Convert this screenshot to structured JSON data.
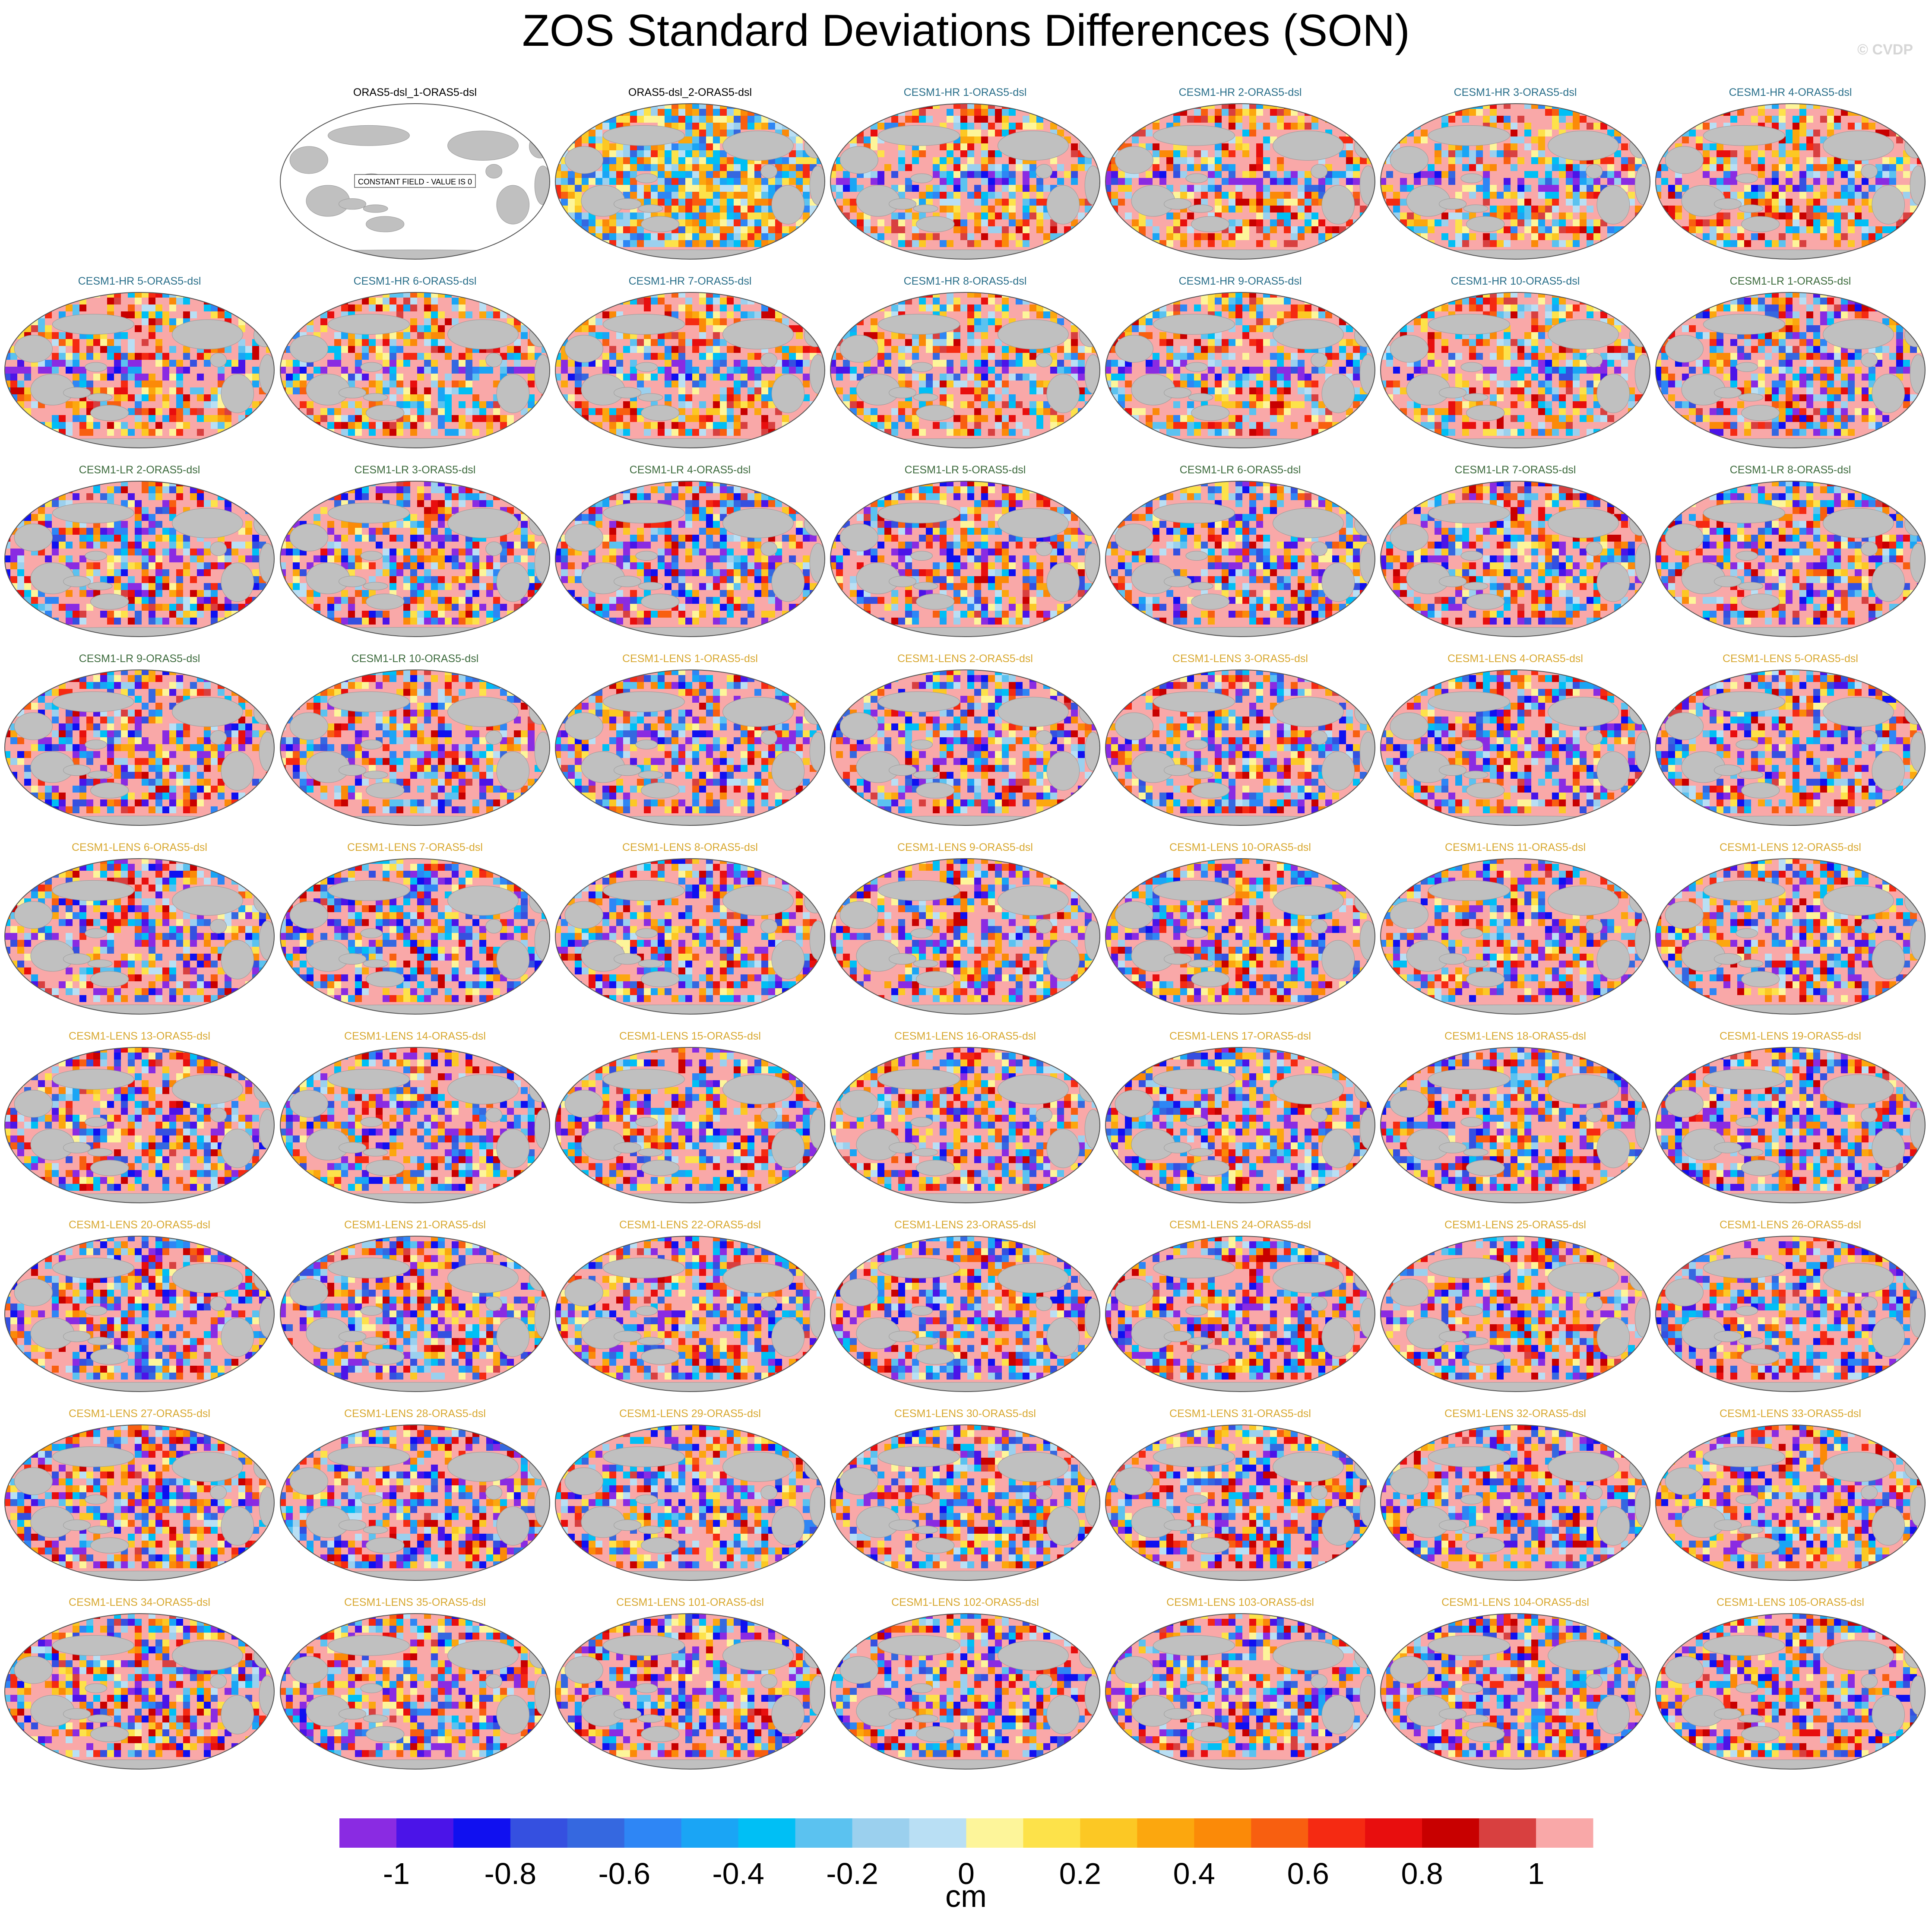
{
  "figure": {
    "title": "ZOS Standard Deviations Differences (SON)",
    "credit": "© CVDP",
    "colorbar_units": "cm",
    "constant_field_label": "CONSTANT FIELD - VALUE IS 0"
  },
  "chart_data": {
    "type": "heatmap",
    "title": "ZOS Standard Deviations Differences (SON)",
    "units": "cm",
    "colorbar": {
      "tick_labels": [
        "-1",
        "-0.8",
        "-0.6",
        "-0.4",
        "-0.2",
        "0",
        "0.2",
        "0.4",
        "0.6",
        "0.8",
        "1"
      ],
      "tick_values": [
        -1,
        -0.8,
        -0.6,
        -0.4,
        -0.2,
        0,
        0.2,
        0.4,
        0.6,
        0.8,
        1
      ],
      "colors": [
        "#8a2be2",
        "#4b14e8",
        "#1010f0",
        "#3550e0",
        "#3568e0",
        "#2e86f5",
        "#1aa5f5",
        "#00bff5",
        "#5bc2f0",
        "#9bd0ee",
        "#b9dff4",
        "#fdf59a",
        "#fde24a",
        "#fcc824",
        "#fca70e",
        "#fb8a08",
        "#f85f10",
        "#f52a12",
        "#e80e0e",
        "#c80000",
        "#d84040",
        "#f9a8a8"
      ]
    },
    "land_color": "#c0c0c0",
    "panels": [
      {
        "label": "ORAS5-dsl_1-ORAS5-dsl",
        "group": "obs",
        "constant": true
      },
      {
        "label": "ORAS5-dsl_2-ORAS5-dsl",
        "group": "obs"
      },
      {
        "label": "CESM1-HR 1-ORAS5-dsl",
        "group": "hr"
      },
      {
        "label": "CESM1-HR 2-ORAS5-dsl",
        "group": "hr"
      },
      {
        "label": "CESM1-HR 3-ORAS5-dsl",
        "group": "hr"
      },
      {
        "label": "CESM1-HR 4-ORAS5-dsl",
        "group": "hr"
      },
      {
        "label": "CESM1-HR 5-ORAS5-dsl",
        "group": "hr"
      },
      {
        "label": "CESM1-HR 6-ORAS5-dsl",
        "group": "hr"
      },
      {
        "label": "CESM1-HR 7-ORAS5-dsl",
        "group": "hr"
      },
      {
        "label": "CESM1-HR 8-ORAS5-dsl",
        "group": "hr"
      },
      {
        "label": "CESM1-HR 9-ORAS5-dsl",
        "group": "hr"
      },
      {
        "label": "CESM1-HR 10-ORAS5-dsl",
        "group": "hr"
      },
      {
        "label": "CESM1-LR 1-ORAS5-dsl",
        "group": "lr"
      },
      {
        "label": "CESM1-LR 2-ORAS5-dsl",
        "group": "lr"
      },
      {
        "label": "CESM1-LR 3-ORAS5-dsl",
        "group": "lr"
      },
      {
        "label": "CESM1-LR 4-ORAS5-dsl",
        "group": "lr"
      },
      {
        "label": "CESM1-LR 5-ORAS5-dsl",
        "group": "lr"
      },
      {
        "label": "CESM1-LR 6-ORAS5-dsl",
        "group": "lr"
      },
      {
        "label": "CESM1-LR 7-ORAS5-dsl",
        "group": "lr"
      },
      {
        "label": "CESM1-LR 8-ORAS5-dsl",
        "group": "lr"
      },
      {
        "label": "CESM1-LR 9-ORAS5-dsl",
        "group": "lr"
      },
      {
        "label": "CESM1-LR 10-ORAS5-dsl",
        "group": "lr"
      },
      {
        "label": "CESM1-LENS 1-ORAS5-dsl",
        "group": "lens"
      },
      {
        "label": "CESM1-LENS 2-ORAS5-dsl",
        "group": "lens"
      },
      {
        "label": "CESM1-LENS 3-ORAS5-dsl",
        "group": "lens"
      },
      {
        "label": "CESM1-LENS 4-ORAS5-dsl",
        "group": "lens"
      },
      {
        "label": "CESM1-LENS 5-ORAS5-dsl",
        "group": "lens"
      },
      {
        "label": "CESM1-LENS 6-ORAS5-dsl",
        "group": "lens"
      },
      {
        "label": "CESM1-LENS 7-ORAS5-dsl",
        "group": "lens"
      },
      {
        "label": "CESM1-LENS 8-ORAS5-dsl",
        "group": "lens"
      },
      {
        "label": "CESM1-LENS 9-ORAS5-dsl",
        "group": "lens"
      },
      {
        "label": "CESM1-LENS 10-ORAS5-dsl",
        "group": "lens"
      },
      {
        "label": "CESM1-LENS 11-ORAS5-dsl",
        "group": "lens"
      },
      {
        "label": "CESM1-LENS 12-ORAS5-dsl",
        "group": "lens"
      },
      {
        "label": "CESM1-LENS 13-ORAS5-dsl",
        "group": "lens"
      },
      {
        "label": "CESM1-LENS 14-ORAS5-dsl",
        "group": "lens"
      },
      {
        "label": "CESM1-LENS 15-ORAS5-dsl",
        "group": "lens"
      },
      {
        "label": "CESM1-LENS 16-ORAS5-dsl",
        "group": "lens"
      },
      {
        "label": "CESM1-LENS 17-ORAS5-dsl",
        "group": "lens"
      },
      {
        "label": "CESM1-LENS 18-ORAS5-dsl",
        "group": "lens"
      },
      {
        "label": "CESM1-LENS 19-ORAS5-dsl",
        "group": "lens"
      },
      {
        "label": "CESM1-LENS 20-ORAS5-dsl",
        "group": "lens"
      },
      {
        "label": "CESM1-LENS 21-ORAS5-dsl",
        "group": "lens"
      },
      {
        "label": "CESM1-LENS 22-ORAS5-dsl",
        "group": "lens"
      },
      {
        "label": "CESM1-LENS 23-ORAS5-dsl",
        "group": "lens"
      },
      {
        "label": "CESM1-LENS 24-ORAS5-dsl",
        "group": "lens"
      },
      {
        "label": "CESM1-LENS 25-ORAS5-dsl",
        "group": "lens"
      },
      {
        "label": "CESM1-LENS 26-ORAS5-dsl",
        "group": "lens"
      },
      {
        "label": "CESM1-LENS 27-ORAS5-dsl",
        "group": "lens"
      },
      {
        "label": "CESM1-LENS 28-ORAS5-dsl",
        "group": "lens"
      },
      {
        "label": "CESM1-LENS 29-ORAS5-dsl",
        "group": "lens"
      },
      {
        "label": "CESM1-LENS 30-ORAS5-dsl",
        "group": "lens"
      },
      {
        "label": "CESM1-LENS 31-ORAS5-dsl",
        "group": "lens"
      },
      {
        "label": "CESM1-LENS 32-ORAS5-dsl",
        "group": "lens"
      },
      {
        "label": "CESM1-LENS 33-ORAS5-dsl",
        "group": "lens"
      },
      {
        "label": "CESM1-LENS 34-ORAS5-dsl",
        "group": "lens"
      },
      {
        "label": "CESM1-LENS 35-ORAS5-dsl",
        "group": "lens"
      },
      {
        "label": "CESM1-LENS 101-ORAS5-dsl",
        "group": "lens"
      },
      {
        "label": "CESM1-LENS 102-ORAS5-dsl",
        "group": "lens"
      },
      {
        "label": "CESM1-LENS 103-ORAS5-dsl",
        "group": "lens"
      },
      {
        "label": "CESM1-LENS 104-ORAS5-dsl",
        "group": "lens"
      },
      {
        "label": "CESM1-LENS 105-ORAS5-dsl",
        "group": "lens"
      }
    ],
    "group_title_colors": {
      "obs": "#000000",
      "hr": "#2a6f8a",
      "lr": "#3d6b3d",
      "lens": "#d8a830"
    }
  }
}
